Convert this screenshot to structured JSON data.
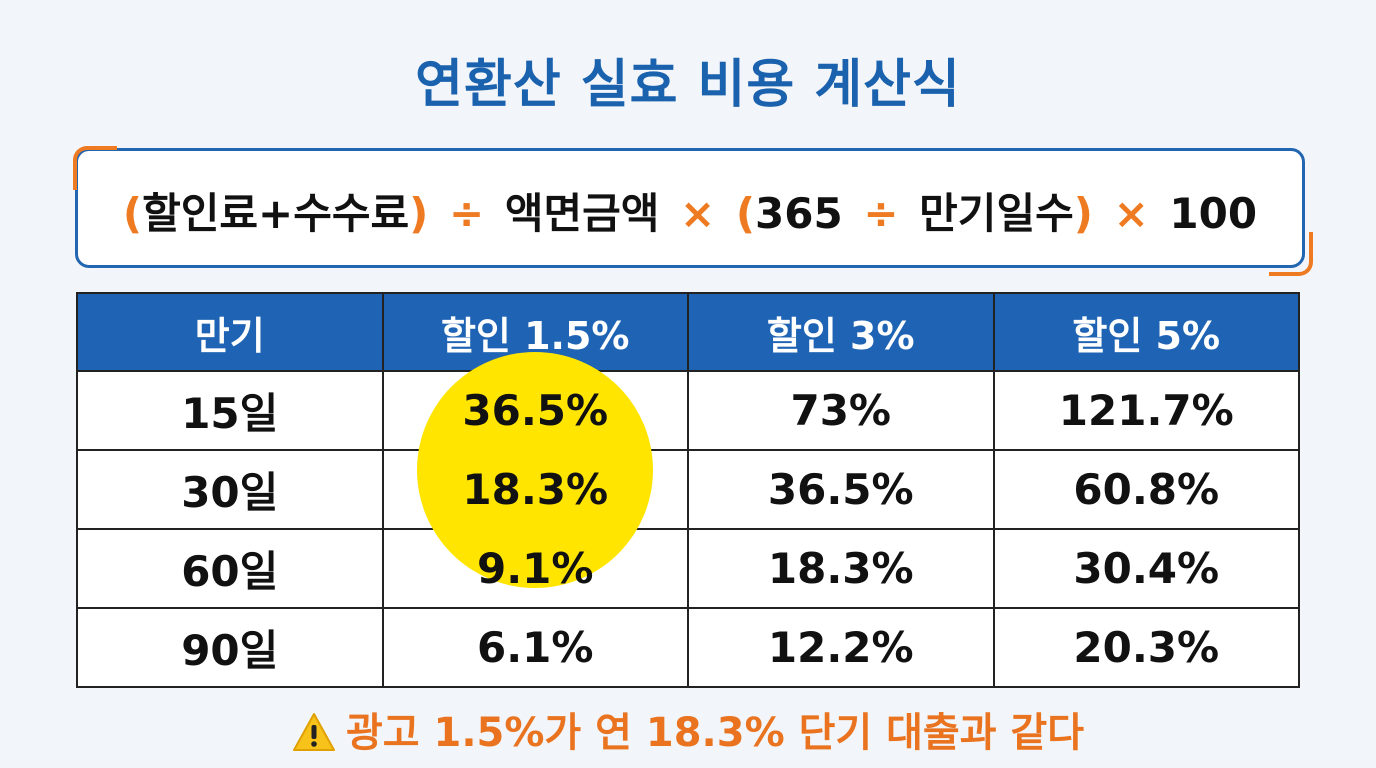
{
  "header": {
    "title": "연환산 실효 비용 계산식"
  },
  "formula": {
    "parts": [
      "(",
      "할인료+수수료",
      ")",
      "÷",
      "액면금액",
      "×",
      "(",
      "365",
      "÷",
      "만기일수",
      ")",
      "×",
      "100"
    ]
  },
  "table": {
    "header": [
      "만기",
      "할인 1.5%",
      "할인 3%",
      "할인 5%"
    ],
    "rows": [
      [
        "15일",
        "36.5%",
        "73%",
        "121.7%"
      ],
      [
        "30일",
        "18.3%",
        "36.5%",
        "60.8%"
      ],
      [
        "60일",
        "9.1%",
        "18.3%",
        "30.4%"
      ],
      [
        "90일",
        "6.1%",
        "12.2%",
        "20.3%"
      ]
    ]
  },
  "warning": {
    "text": "광고 1.5%가 연 18.3% 단기 대출과 같다"
  }
}
